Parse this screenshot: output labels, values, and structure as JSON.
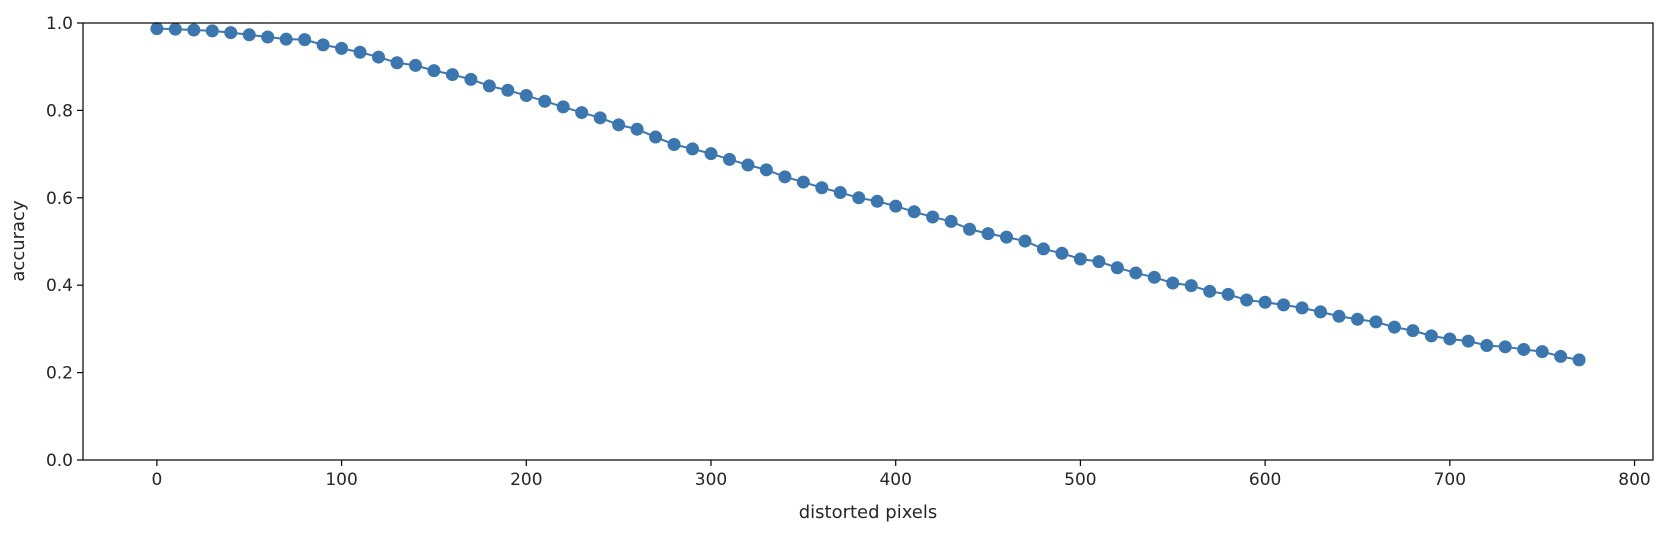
{
  "chart_data": {
    "type": "line",
    "title": "",
    "xlabel": "distorted pixels",
    "ylabel": "accuracy",
    "xlim": [
      -40,
      810
    ],
    "ylim": [
      0.0,
      1.0
    ],
    "xticks": [
      0,
      100,
      200,
      300,
      400,
      500,
      600,
      700,
      800
    ],
    "yticks": [
      0.0,
      0.2,
      0.4,
      0.6,
      0.8,
      1.0
    ],
    "xtick_labels": [
      "0",
      "100",
      "200",
      "300",
      "400",
      "500",
      "600",
      "700",
      "800"
    ],
    "ytick_labels": [
      "0.0",
      "0.2",
      "0.4",
      "0.6",
      "0.8",
      "1.0"
    ],
    "grid": false,
    "marker": "circle",
    "color": "#3b76af",
    "series": [
      {
        "x": [
          0,
          10,
          20,
          30,
          40,
          50,
          60,
          70,
          80,
          90,
          100,
          110,
          120,
          130,
          140,
          150,
          160,
          170,
          180,
          190,
          200,
          210,
          220,
          230,
          240,
          250,
          260,
          270,
          280,
          290,
          300,
          310,
          320,
          330,
          340,
          350,
          360,
          370,
          380,
          390,
          400,
          410,
          420,
          430,
          440,
          450,
          460,
          470,
          480,
          490,
          500,
          510,
          520,
          530,
          540,
          550,
          560,
          570,
          580,
          590,
          600,
          610,
          620,
          630,
          640,
          650,
          660,
          670,
          680,
          690,
          700,
          710,
          720,
          730,
          740,
          750,
          760,
          770
        ],
        "values": [
          0.987,
          0.986,
          0.984,
          0.982,
          0.978,
          0.973,
          0.968,
          0.963,
          0.962,
          0.95,
          0.942,
          0.933,
          0.922,
          0.909,
          0.903,
          0.891,
          0.882,
          0.871,
          0.856,
          0.846,
          0.834,
          0.821,
          0.808,
          0.795,
          0.783,
          0.767,
          0.757,
          0.739,
          0.722,
          0.712,
          0.701,
          0.688,
          0.675,
          0.664,
          0.648,
          0.636,
          0.623,
          0.612,
          0.6,
          0.592,
          0.581,
          0.568,
          0.556,
          0.546,
          0.528,
          0.518,
          0.51,
          0.501,
          0.483,
          0.473,
          0.46,
          0.454,
          0.44,
          0.428,
          0.418,
          0.405,
          0.399,
          0.386,
          0.379,
          0.366,
          0.361,
          0.355,
          0.348,
          0.339,
          0.329,
          0.322,
          0.316,
          0.304,
          0.296,
          0.284,
          0.277,
          0.272,
          0.262,
          0.259,
          0.253,
          0.248,
          0.237,
          0.229
        ]
      }
    ]
  }
}
